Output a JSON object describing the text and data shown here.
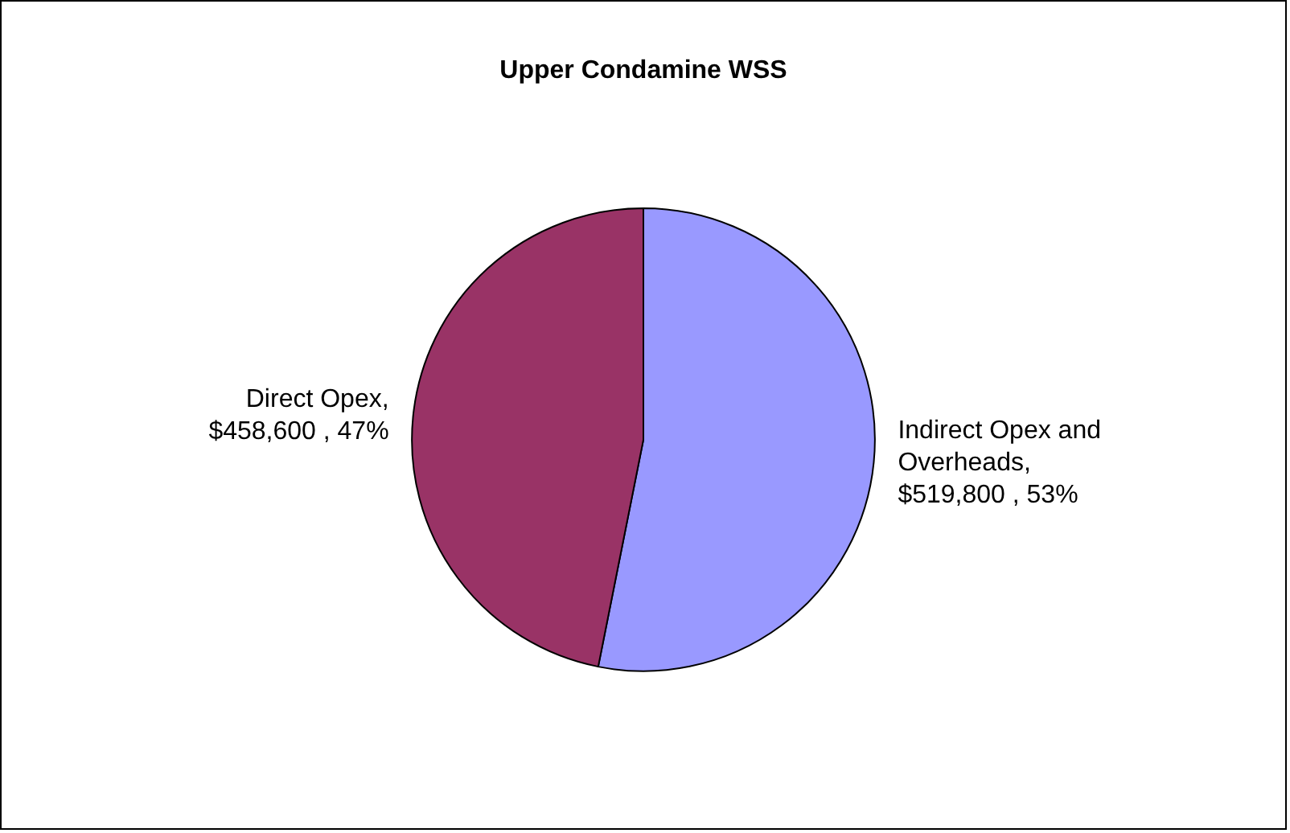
{
  "chart_data": {
    "type": "pie",
    "title": "Upper Condamine WSS",
    "categories": [
      "Indirect Opex and Overheads",
      "Direct Opex"
    ],
    "values": [
      519800,
      458600
    ],
    "colors": [
      "#9999ff",
      "#993366"
    ],
    "value_labels": [
      ", $519,800 , 53%",
      ", $458,600 , 47%"
    ],
    "legend": false
  }
}
